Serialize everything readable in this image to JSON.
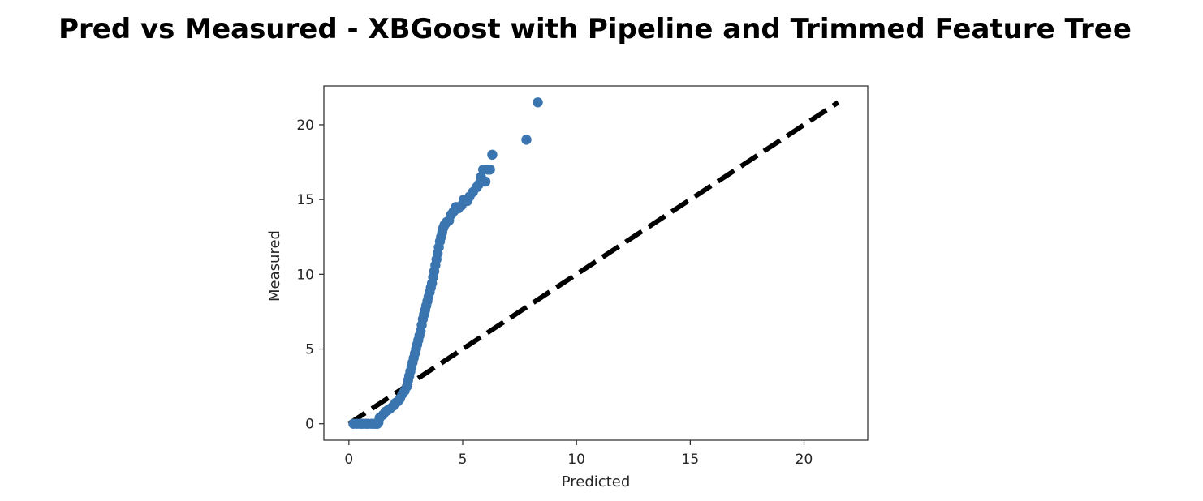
{
  "chart_data": {
    "type": "scatter",
    "title": "Pred vs Measured - XBGoost with Pipeline and Trimmed Feature Tree",
    "xlabel": "Predicted",
    "ylabel": "Measured",
    "xlim": [
      -1.1,
      22.8
    ],
    "ylim": [
      -1.1,
      22.6
    ],
    "xticks": [
      0,
      5,
      10,
      15,
      20
    ],
    "yticks": [
      0,
      5,
      10,
      15,
      20
    ],
    "xtick_labels": [
      "0",
      "5",
      "10",
      "15",
      "20"
    ],
    "ytick_labels": [
      "0",
      "5",
      "10",
      "15",
      "20"
    ],
    "grid": false,
    "reference_line": {
      "style": "dashed",
      "color": "#000000",
      "x": [
        0,
        21.5
      ],
      "y": [
        0,
        21.5
      ]
    },
    "series": [
      {
        "color": "#3a75b0",
        "x": [
          0.2,
          0.35,
          0.5,
          0.6,
          0.75,
          0.85,
          1.0,
          1.1,
          1.2,
          1.25,
          1.3,
          1.35,
          1.5,
          1.6,
          1.7,
          1.8,
          1.95,
          2.05,
          2.15,
          2.25,
          2.35,
          2.45,
          2.55,
          2.6,
          2.65,
          2.7,
          2.75,
          2.8,
          2.85,
          2.9,
          2.95,
          3.0,
          3.05,
          3.1,
          3.15,
          3.2,
          3.25,
          3.3,
          3.35,
          3.4,
          3.45,
          3.5,
          3.55,
          3.6,
          3.65,
          3.7,
          3.75,
          3.8,
          3.85,
          3.9,
          3.95,
          4.0,
          4.05,
          4.1,
          4.15,
          4.2,
          4.25,
          4.3,
          4.4,
          4.5,
          4.6,
          4.7,
          4.8,
          4.95,
          5.05,
          5.2,
          5.3,
          5.45,
          5.6,
          5.7,
          5.8,
          5.9,
          6.0,
          6.1,
          6.2,
          6.3,
          7.8,
          8.3
        ],
        "y": [
          0,
          0,
          0,
          0,
          0,
          0,
          0,
          0,
          0,
          0,
          0.1,
          0.4,
          0.6,
          0.8,
          0.9,
          1.0,
          1.2,
          1.4,
          1.5,
          1.7,
          2.0,
          2.2,
          2.5,
          2.9,
          3.2,
          3.5,
          3.8,
          4.1,
          4.4,
          4.7,
          5.0,
          5.3,
          5.6,
          5.9,
          6.2,
          6.6,
          7.0,
          7.3,
          7.6,
          7.9,
          8.2,
          8.5,
          8.8,
          9.1,
          9.4,
          9.8,
          10.2,
          10.6,
          11.0,
          11.4,
          11.8,
          12.2,
          12.5,
          12.8,
          13.1,
          13.3,
          13.4,
          13.5,
          13.6,
          14.0,
          14.2,
          14.5,
          14.4,
          14.6,
          15.0,
          14.9,
          15.2,
          15.5,
          15.8,
          16.0,
          16.5,
          17.0,
          16.2,
          17.0,
          17.0,
          18.0,
          19.0,
          21.5
        ]
      }
    ]
  }
}
